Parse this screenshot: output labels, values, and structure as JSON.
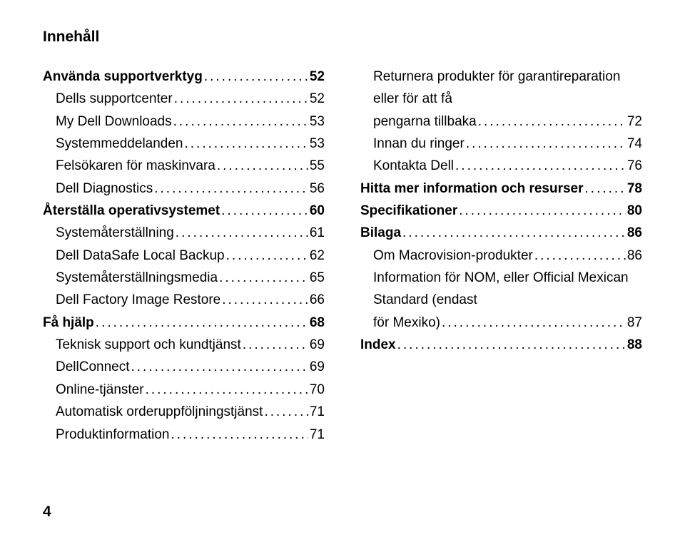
{
  "header": "Innehåll",
  "page_number": "4",
  "left": [
    {
      "type": "section",
      "label": "Använda supportverktyg",
      "page": "52"
    },
    {
      "type": "sub",
      "label": "Dells supportcenter",
      "page": "52"
    },
    {
      "type": "sub",
      "label": "My Dell Downloads",
      "page": "53"
    },
    {
      "type": "sub",
      "label": "Systemmeddelanden",
      "page": "53"
    },
    {
      "type": "sub",
      "label": "Felsökaren för maskinvara",
      "page": "55"
    },
    {
      "type": "sub",
      "label": "Dell Diagnostics",
      "page": "56"
    },
    {
      "type": "section",
      "label": "Återställa operativsystemet",
      "page": "60"
    },
    {
      "type": "sub",
      "label": "Systemåterställning",
      "page": "61"
    },
    {
      "type": "sub",
      "label": "Dell DataSafe Local Backup",
      "page": "62"
    },
    {
      "type": "sub",
      "label": "Systemåterställningsmedia",
      "page": "65"
    },
    {
      "type": "sub",
      "label": "Dell Factory Image Restore",
      "page": "66"
    },
    {
      "type": "section",
      "label": "Få hjälp",
      "page": "68"
    },
    {
      "type": "sub",
      "label": "Teknisk support och kundtjänst",
      "page": "69"
    },
    {
      "type": "sub",
      "label": "DellConnect",
      "page": "69"
    },
    {
      "type": "sub",
      "label": "Online-tjänster",
      "page": "70"
    },
    {
      "type": "sub",
      "label": "Automatisk orderuppföljningstjänst",
      "page": "71"
    },
    {
      "type": "sub",
      "label": "Produktinformation",
      "page": "71"
    }
  ],
  "right": [
    {
      "type": "sub",
      "label_pre": "Returnera produkter för garantireparation eller för att få pengarna tillbaka",
      "page": "72",
      "multiline": true
    },
    {
      "type": "sub",
      "label": "Innan du ringer",
      "page": "74"
    },
    {
      "type": "sub",
      "label": "Kontakta Dell",
      "page": "76"
    },
    {
      "type": "section",
      "label": "Hitta mer information och resurser",
      "page": "78"
    },
    {
      "type": "section",
      "label": "Specifikationer",
      "page": "80"
    },
    {
      "type": "section",
      "label": "Bilaga",
      "page": "86"
    },
    {
      "type": "sub",
      "label": "Om Macrovision-produkter",
      "page": "86"
    },
    {
      "type": "sub",
      "label_pre": "Information för NOM, eller Official Mexican Standard (endast för Mexiko)",
      "page": "87",
      "multiline": true
    },
    {
      "type": "section",
      "label": "Index",
      "page": "88"
    }
  ]
}
